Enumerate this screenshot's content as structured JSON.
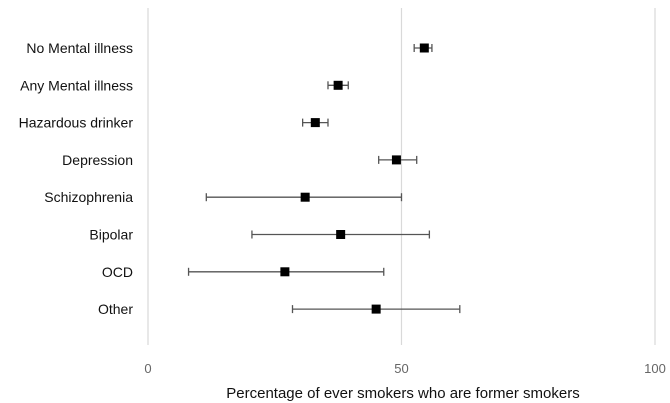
{
  "chart_data": {
    "type": "scatter",
    "subtype": "forest-plot",
    "title": "",
    "xlabel": "Percentage of ever smokers who are former smokers",
    "ylabel": "",
    "xlim": [
      0,
      100
    ],
    "xticks": [
      0,
      50,
      100
    ],
    "grid": "vertical gridlines at 50 and 100",
    "legend": "none",
    "marker_color": "#000000",
    "errorbar_color": "#555555",
    "gridline_color": "#d9d9d9",
    "categories": [
      "No Mental illness",
      "Any Mental illness",
      "Hazardous drinker",
      "Depression",
      "Schizophrenia",
      "Bipolar",
      "OCD",
      "Other"
    ],
    "points": [
      {
        "category": "No Mental illness",
        "value": 54.5,
        "ci_low": 52.5,
        "ci_high": 56
      },
      {
        "category": "Any Mental illness",
        "value": 37.5,
        "ci_low": 35.5,
        "ci_high": 39.5
      },
      {
        "category": "Hazardous drinker",
        "value": 33,
        "ci_low": 30.5,
        "ci_high": 35.5
      },
      {
        "category": "Depression",
        "value": 49,
        "ci_low": 45.5,
        "ci_high": 53
      },
      {
        "category": "Schizophrenia",
        "value": 31,
        "ci_low": 11.5,
        "ci_high": 50
      },
      {
        "category": "Bipolar",
        "value": 38,
        "ci_low": 20.5,
        "ci_high": 55.5
      },
      {
        "category": "OCD",
        "value": 27,
        "ci_low": 8,
        "ci_high": 46.5
      },
      {
        "category": "Other",
        "value": 45,
        "ci_low": 28.5,
        "ci_high": 61.5
      }
    ]
  }
}
